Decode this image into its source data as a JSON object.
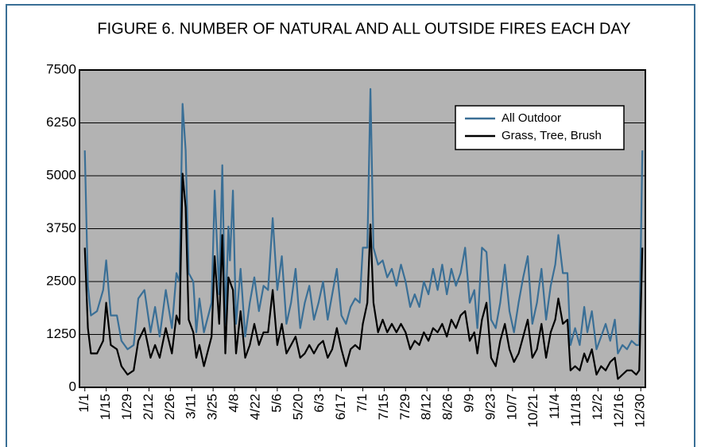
{
  "chart_data": {
    "type": "line",
    "title": "FIGURE 6.  NUMBER OF NATURAL AND ALL OUTSIDE FIRES EACH DAY",
    "x": [
      1,
      3,
      5,
      9,
      13,
      15,
      18,
      22,
      25,
      29,
      33,
      36,
      40,
      44,
      47,
      50,
      54,
      58,
      61,
      63,
      65,
      67,
      69,
      72,
      74,
      76,
      79,
      84,
      86,
      89,
      91,
      93,
      95,
      96,
      98,
      100,
      103,
      106,
      109,
      112,
      115,
      118,
      121,
      124,
      127,
      130,
      133,
      136,
      139,
      142,
      145,
      148,
      151,
      154,
      157,
      160,
      163,
      166,
      169,
      172,
      175,
      178,
      181,
      183,
      186,
      188,
      190,
      193,
      196,
      199,
      202,
      205,
      208,
      211,
      214,
      217,
      220,
      223,
      226,
      229,
      232,
      235,
      238,
      241,
      244,
      247,
      250,
      253,
      256,
      258,
      261,
      264,
      267,
      270,
      273,
      276,
      279,
      282,
      285,
      288,
      291,
      294,
      297,
      300,
      303,
      306,
      309,
      311,
      314,
      317,
      319,
      322,
      325,
      328,
      330,
      333,
      336,
      339,
      342,
      345,
      348,
      350,
      353,
      356,
      359,
      362,
      364,
      366
    ],
    "series": [
      {
        "name": "All Outdoor",
        "color": "#3a6f96",
        "values": [
          5600,
          2400,
          1700,
          1800,
          2300,
          3000,
          1700,
          1700,
          1100,
          900,
          1000,
          2100,
          2300,
          1300,
          1900,
          1200,
          2300,
          1400,
          2700,
          2500,
          6700,
          5600,
          2700,
          2500,
          1300,
          2100,
          1300,
          2000,
          4650,
          2200,
          5250,
          1500,
          3800,
          3000,
          4650,
          1500,
          2800,
          1200,
          2000,
          2600,
          1800,
          2400,
          2300,
          4000,
          2300,
          3100,
          1500,
          2000,
          2800,
          1400,
          2000,
          2400,
          1600,
          2000,
          2500,
          1600,
          2200,
          2800,
          1700,
          1500,
          1900,
          2100,
          2000,
          3300,
          3300,
          7050,
          3300,
          2900,
          3000,
          2600,
          2800,
          2400,
          2900,
          2500,
          1900,
          2200,
          1900,
          2500,
          2200,
          2800,
          2300,
          2900,
          2200,
          2800,
          2400,
          2700,
          3300,
          2000,
          2300,
          1400,
          3300,
          3200,
          1600,
          1400,
          2000,
          2900,
          1800,
          1300,
          2000,
          2600,
          3100,
          1500,
          2000,
          2800,
          1600,
          2400,
          2900,
          3600,
          2700,
          2700,
          1000,
          1400,
          1000,
          1900,
          1300,
          1800,
          900,
          1200,
          1500,
          1100,
          1600,
          800,
          1000,
          900,
          1100,
          1000,
          1000,
          5600
        ]
      },
      {
        "name": "Grass, Tree, Brush",
        "color": "#000000",
        "values": [
          3300,
          1400,
          800,
          800,
          1100,
          2000,
          1000,
          900,
          500,
          300,
          400,
          1100,
          1400,
          700,
          1000,
          700,
          1400,
          800,
          1700,
          1500,
          5050,
          4250,
          1600,
          1300,
          700,
          1000,
          500,
          1200,
          3100,
          1500,
          3600,
          800,
          2600,
          2500,
          2300,
          800,
          1800,
          700,
          1000,
          1500,
          1000,
          1300,
          1300,
          2300,
          1000,
          1500,
          800,
          1000,
          1200,
          700,
          800,
          1000,
          800,
          1000,
          1100,
          700,
          900,
          1400,
          900,
          500,
          900,
          1000,
          900,
          1500,
          2000,
          3850,
          2000,
          1300,
          1600,
          1300,
          1500,
          1300,
          1500,
          1300,
          900,
          1100,
          1000,
          1300,
          1100,
          1400,
          1300,
          1500,
          1200,
          1600,
          1400,
          1700,
          1800,
          1100,
          1300,
          800,
          1600,
          2000,
          700,
          500,
          1100,
          1500,
          900,
          600,
          800,
          1200,
          1600,
          700,
          900,
          1500,
          700,
          1300,
          1600,
          2100,
          1500,
          1600,
          400,
          500,
          400,
          800,
          600,
          900,
          300,
          500,
          400,
          600,
          700,
          200,
          300,
          400,
          400,
          300,
          400,
          3300
        ]
      }
    ],
    "xlim": [
      -2.5,
      368
    ],
    "xticks": [
      {
        "value": 1,
        "label": "1/1"
      },
      {
        "value": 15,
        "label": "1/15"
      },
      {
        "value": 29,
        "label": "1/29"
      },
      {
        "value": 43,
        "label": "2/12"
      },
      {
        "value": 57,
        "label": "2/26"
      },
      {
        "value": 71,
        "label": "3/11"
      },
      {
        "value": 85,
        "label": "3/25"
      },
      {
        "value": 99,
        "label": "4/8"
      },
      {
        "value": 113,
        "label": "4/22"
      },
      {
        "value": 127,
        "label": "5/6"
      },
      {
        "value": 141,
        "label": "5/20"
      },
      {
        "value": 155,
        "label": "6/3"
      },
      {
        "value": 169,
        "label": "6/17"
      },
      {
        "value": 183,
        "label": "7/1"
      },
      {
        "value": 197,
        "label": "7/15"
      },
      {
        "value": 211,
        "label": "7/29"
      },
      {
        "value": 225,
        "label": "8/12"
      },
      {
        "value": 239,
        "label": "8/26"
      },
      {
        "value": 253,
        "label": "9/9"
      },
      {
        "value": 267,
        "label": "9/23"
      },
      {
        "value": 281,
        "label": "10/7"
      },
      {
        "value": 295,
        "label": "10/21"
      },
      {
        "value": 309,
        "label": "11/4"
      },
      {
        "value": 323,
        "label": "11/18"
      },
      {
        "value": 337,
        "label": "12/2"
      },
      {
        "value": 351,
        "label": "12/16"
      },
      {
        "value": 365,
        "label": "12/30"
      }
    ],
    "ylim": [
      0,
      7500
    ],
    "yticks": [
      0,
      1250,
      2500,
      3750,
      5000,
      6250,
      7500
    ],
    "grid": true,
    "legend": "upper right"
  }
}
